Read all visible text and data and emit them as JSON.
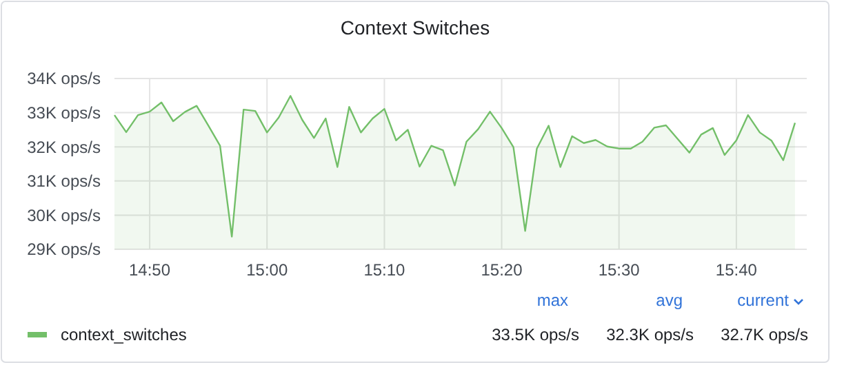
{
  "chart_data": {
    "type": "area",
    "title": "Context Switches",
    "x": [
      14.7833,
      14.8,
      14.8167,
      14.8333,
      14.85,
      14.8667,
      14.8833,
      14.9,
      14.9167,
      14.9333,
      14.95,
      14.9667,
      14.9833,
      15.0,
      15.0167,
      15.0333,
      15.05,
      15.0667,
      15.0833,
      15.1,
      15.1167,
      15.1333,
      15.15,
      15.1667,
      15.1833,
      15.2,
      15.2167,
      15.2333,
      15.25,
      15.2667,
      15.2833,
      15.3,
      15.3167,
      15.3333,
      15.35,
      15.3667,
      15.3833,
      15.4,
      15.4167,
      15.4333,
      15.45,
      15.4667,
      15.4833,
      15.5,
      15.5167,
      15.5333,
      15.55,
      15.5667,
      15.5833,
      15.6,
      15.6167,
      15.6333,
      15.65,
      15.6667,
      15.6833,
      15.7,
      15.7167,
      15.7333,
      15.75
    ],
    "series": [
      {
        "name": "context_switches",
        "color": "#73bf69",
        "values": [
          32.93,
          32.43,
          32.93,
          33.03,
          33.3,
          32.75,
          33.02,
          33.2,
          32.62,
          32.03,
          29.37,
          33.09,
          33.05,
          32.42,
          32.86,
          33.49,
          32.79,
          32.26,
          32.83,
          31.41,
          33.17,
          32.42,
          32.83,
          33.11,
          32.19,
          32.5,
          31.42,
          32.03,
          31.9,
          30.87,
          32.15,
          32.52,
          33.03,
          32.55,
          31.99,
          29.54,
          31.95,
          32.62,
          31.41,
          32.31,
          32.11,
          32.2,
          32.01,
          31.95,
          31.95,
          32.15,
          32.56,
          32.63,
          32.23,
          31.83,
          32.36,
          32.55,
          31.76,
          32.19,
          32.93,
          32.42,
          32.18,
          31.61,
          32.7
        ]
      }
    ],
    "xlim": [
      14.7833,
      15.7667
    ],
    "xticks": [
      {
        "value": 14.8333,
        "label": "14:50"
      },
      {
        "value": 15.0,
        "label": "15:00"
      },
      {
        "value": 15.1667,
        "label": "15:10"
      },
      {
        "value": 15.3333,
        "label": "15:20"
      },
      {
        "value": 15.5,
        "label": "15:30"
      },
      {
        "value": 15.6667,
        "label": "15:40"
      }
    ],
    "ylim": [
      29,
      34
    ],
    "yticks": [
      {
        "value": 29,
        "label": "29K ops/s"
      },
      {
        "value": 30,
        "label": "30K ops/s"
      },
      {
        "value": 31,
        "label": "31K ops/s"
      },
      {
        "value": 32,
        "label": "32K ops/s"
      },
      {
        "value": 33,
        "label": "33K ops/s"
      },
      {
        "value": 34,
        "label": "34K ops/s"
      }
    ],
    "grid": true,
    "legend": "bottom",
    "marker": "none",
    "line_style": "solid",
    "annotations": [
      "max",
      "avg",
      "current",
      "33.5K ops/s",
      "32.3K ops/s",
      "32.7K ops/s"
    ]
  }
}
